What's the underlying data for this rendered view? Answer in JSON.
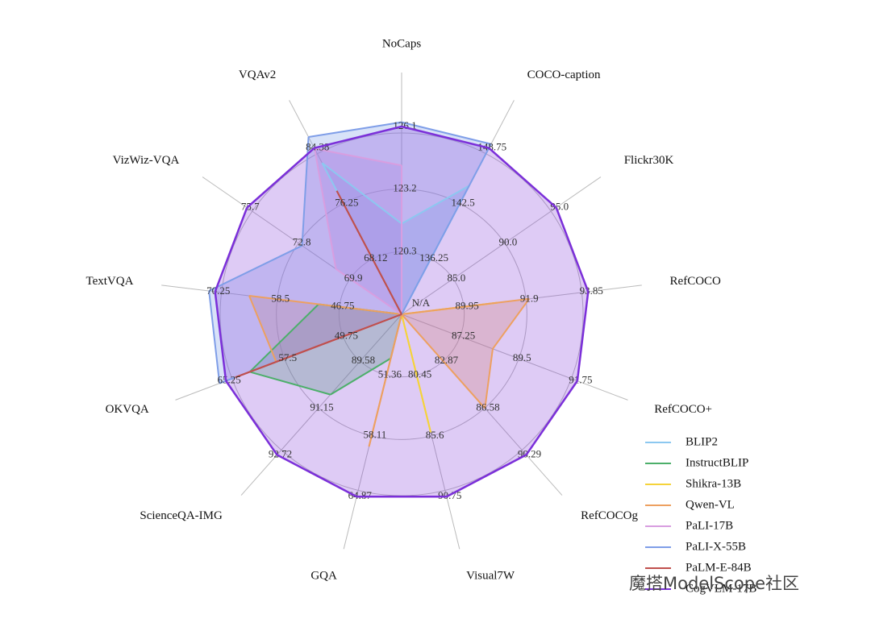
{
  "chart_data": {
    "type": "radar",
    "center_label": "N/A",
    "watermark": "魔搭ModelScope社区",
    "axes": [
      {
        "name": "NoCaps",
        "range": [
          117.4,
          126.1
        ],
        "ticks": [
          120.3,
          123.2,
          126.1
        ]
      },
      {
        "name": "COCO-caption",
        "range": [
          130.0,
          148.75
        ],
        "ticks": [
          136.25,
          142.5,
          148.75
        ]
      },
      {
        "name": "Flickr30K",
        "range": [
          80.0,
          95.0
        ],
        "ticks": [
          {
            "value": 85,
            "label": "85.0"
          },
          {
            "value": 90,
            "label": "90.0"
          },
          {
            "value": 95,
            "label": "95.0"
          }
        ]
      },
      {
        "name": "RefCOCO",
        "range": [
          88.0,
          93.85
        ],
        "ticks": [
          89.95,
          91.9,
          93.85
        ]
      },
      {
        "name": "RefCOCO+",
        "range": [
          85.0,
          91.75
        ],
        "ticks": [
          87.25,
          89.5,
          91.75
        ]
      },
      {
        "name": "RefCOCOg",
        "range": [
          79.16,
          90.29
        ],
        "ticks": [
          82.87,
          86.58,
          90.29
        ]
      },
      {
        "name": "Visual7W",
        "range": [
          75.3,
          90.75
        ],
        "ticks": [
          80.45,
          85.6,
          90.75
        ]
      },
      {
        "name": "GQA",
        "range": [
          44.61,
          64.87
        ],
        "ticks": [
          51.36,
          58.11,
          64.87
        ]
      },
      {
        "name": "ScienceQA-IMG",
        "range": [
          88.01,
          92.72
        ],
        "ticks": [
          89.58,
          91.15,
          92.72
        ]
      },
      {
        "name": "OKVQA",
        "range": [
          42.0,
          65.25
        ],
        "ticks": [
          49.75,
          57.5,
          65.25
        ]
      },
      {
        "name": "TextVQA",
        "range": [
          35.0,
          70.25
        ],
        "ticks": [
          46.75,
          58.5,
          70.25
        ]
      },
      {
        "name": "VizWiz-VQA",
        "range": [
          67.0,
          75.7
        ],
        "ticks": [
          69.9,
          72.8,
          75.7
        ]
      },
      {
        "name": "VQAv2",
        "range": [
          59.99,
          84.38
        ],
        "ticks": [
          68.12,
          76.25,
          84.38
        ]
      }
    ],
    "series": [
      {
        "name": "BLIP2",
        "color": "#8cc8f0",
        "values": [
          121.6,
          144.5,
          null,
          null,
          null,
          null,
          null,
          null,
          null,
          null,
          null,
          null,
          82.2
        ]
      },
      {
        "name": "InstructBLIP",
        "color": "#4caf6a",
        "values": [
          null,
          null,
          null,
          null,
          null,
          null,
          null,
          49.5,
          90.7,
          62.1,
          50.7,
          null,
          null
        ]
      },
      {
        "name": "Shikra-13B",
        "color": "#f5d33a",
        "values": [
          null,
          null,
          null,
          91.0,
          null,
          null,
          85.3,
          null,
          null,
          null,
          null,
          null,
          null
        ]
      },
      {
        "name": "Qwen-VL",
        "color": "#eda060",
        "values": [
          null,
          null,
          null,
          92.0,
          88.5,
          86.6,
          null,
          59.3,
          null,
          58.6,
          63.8,
          null,
          null
        ]
      },
      {
        "name": "PaLI-17B",
        "color": "#d89ee0",
        "values": [
          124.3,
          null,
          null,
          null,
          null,
          null,
          null,
          null,
          null,
          64.5,
          null,
          70.7,
          84.3
        ]
      },
      {
        "name": "PaLI-X-55B",
        "color": "#7f9ee8",
        "values": [
          126.3,
          149.2,
          null,
          null,
          null,
          null,
          null,
          null,
          null,
          66.1,
          71.4,
          72.6,
          86.0
        ]
      },
      {
        "name": "PaLM-E-84B",
        "color": "#c0504d",
        "values": [
          null,
          null,
          null,
          null,
          null,
          null,
          null,
          null,
          null,
          64.0,
          null,
          null,
          78.1
        ]
      },
      {
        "name": "CogVLM-17B",
        "color": "#7b2fd9",
        "values": [
          126.1,
          148.75,
          95.0,
          93.85,
          91.75,
          90.29,
          90.75,
          64.87,
          92.72,
          65.25,
          70.25,
          75.7,
          84.38
        ]
      }
    ]
  }
}
